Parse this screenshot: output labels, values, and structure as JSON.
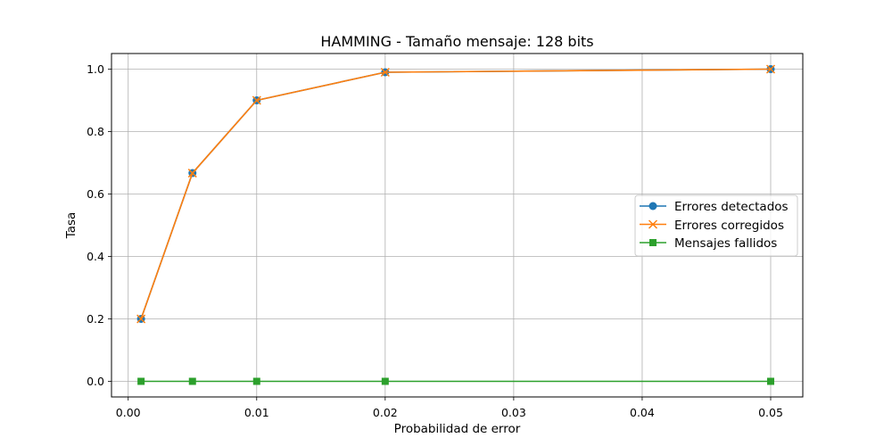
{
  "chart_data": {
    "type": "line",
    "title": "HAMMING - Tamaño mensaje: 128 bits",
    "xlabel": "Probabilidad de error",
    "ylabel": "Tasa",
    "x": [
      0.001,
      0.005,
      0.01,
      0.02,
      0.05
    ],
    "xlim": [
      -0.0013,
      0.0525
    ],
    "ylim": [
      -0.05,
      1.05
    ],
    "xticks": [
      0.0,
      0.01,
      0.02,
      0.03,
      0.04,
      0.05
    ],
    "xtick_labels": [
      "0.00",
      "0.01",
      "0.02",
      "0.03",
      "0.04",
      "0.05"
    ],
    "yticks": [
      0.0,
      0.2,
      0.4,
      0.6,
      0.8,
      1.0
    ],
    "ytick_labels": [
      "0.0",
      "0.2",
      "0.4",
      "0.6",
      "0.8",
      "1.0"
    ],
    "grid": true,
    "legend_position": "center-right",
    "series": [
      {
        "name": "Errores detectados",
        "values": [
          0.2,
          0.667,
          0.9,
          0.99,
          1.0
        ],
        "color": "#1f77b4",
        "marker": "circle"
      },
      {
        "name": "Errores corregidos",
        "values": [
          0.2,
          0.667,
          0.9,
          0.99,
          1.0
        ],
        "color": "#ff7f0e",
        "marker": "x"
      },
      {
        "name": "Mensajes fallidos",
        "values": [
          0.0,
          0.0,
          0.0,
          0.0,
          0.0
        ],
        "color": "#2ca02c",
        "marker": "square"
      }
    ]
  }
}
